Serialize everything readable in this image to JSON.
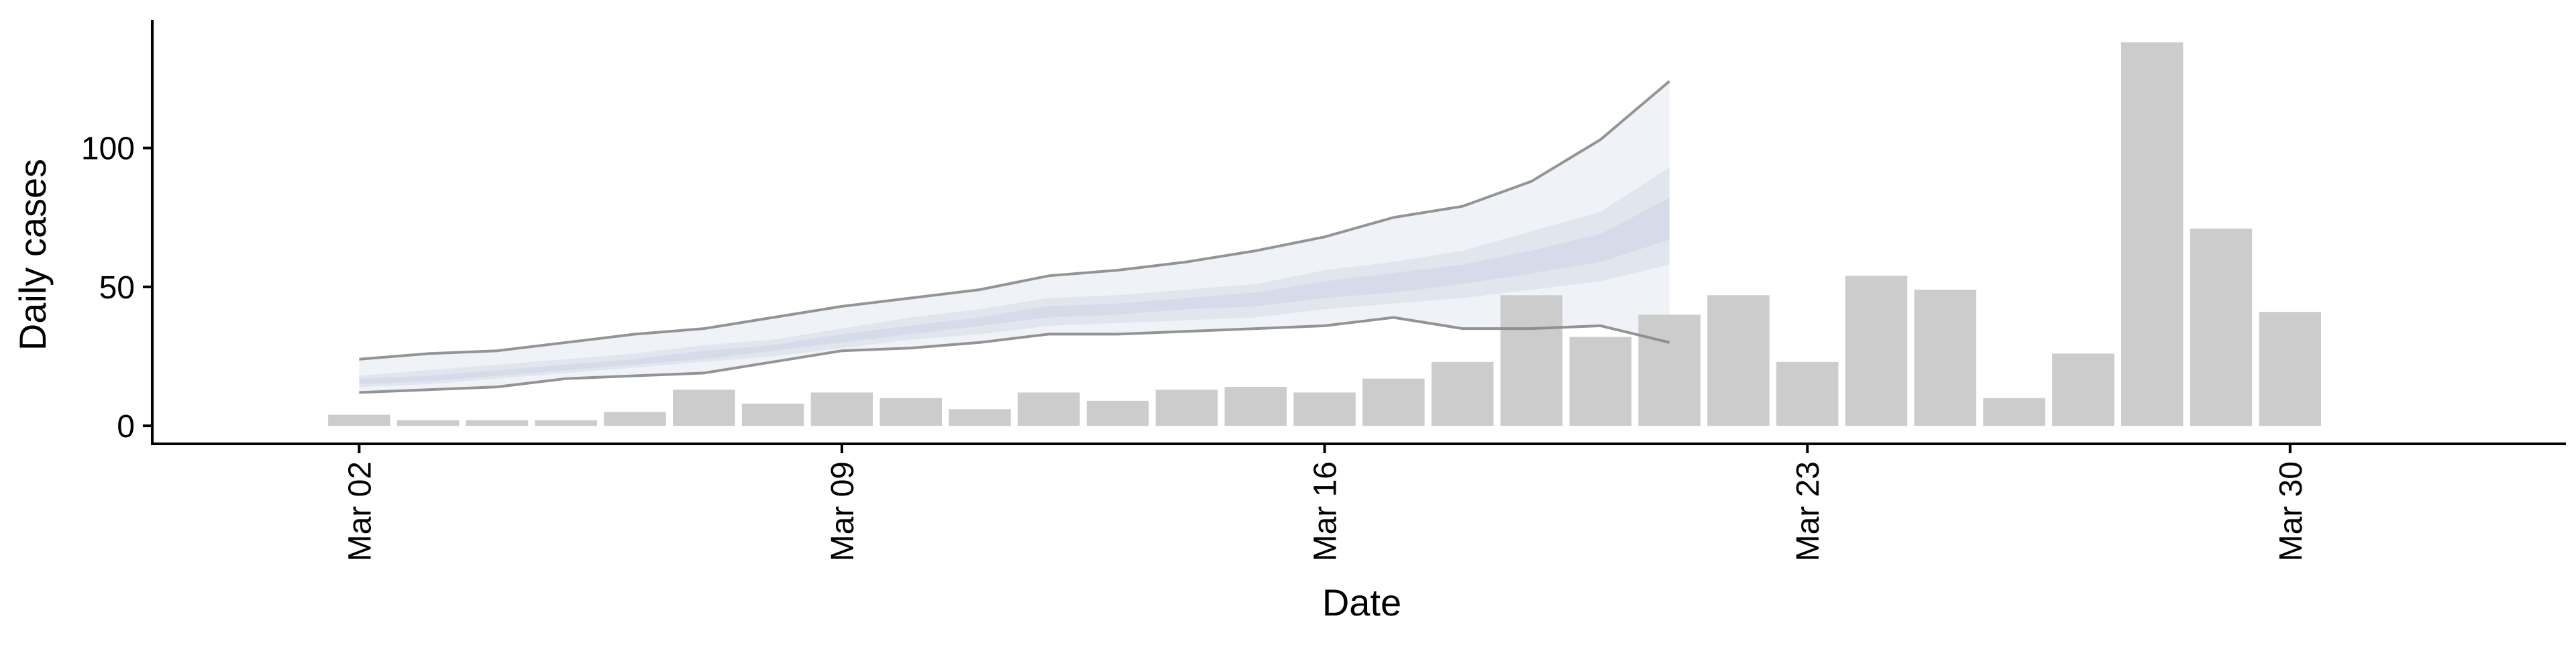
{
  "chart_data": {
    "type": "bar",
    "xlabel": "Date",
    "ylabel": "Daily cases",
    "x_tick_labels": [
      "Mar 02",
      "Mar 09",
      "Mar 16",
      "Mar 23",
      "Mar 30"
    ],
    "y_tick_labels": [
      "0",
      "50",
      "100"
    ],
    "ylim": [
      -6,
      146
    ],
    "xlim": [
      "2020-02-28",
      "2020-04-03"
    ],
    "grid": false,
    "legend": "none",
    "bars": {
      "color": "#cccccc",
      "dates": [
        "Mar 02",
        "Mar 03",
        "Mar 04",
        "Mar 05",
        "Mar 06",
        "Mar 07",
        "Mar 08",
        "Mar 09",
        "Mar 10",
        "Mar 11",
        "Mar 12",
        "Mar 13",
        "Mar 14",
        "Mar 15",
        "Mar 16",
        "Mar 17",
        "Mar 18",
        "Mar 19",
        "Mar 20",
        "Mar 21",
        "Mar 22",
        "Mar 23",
        "Mar 24",
        "Mar 25",
        "Mar 26",
        "Mar 27",
        "Mar 28",
        "Mar 29",
        "Mar 30"
      ],
      "values": [
        4,
        2,
        2,
        2,
        5,
        13,
        8,
        12,
        10,
        6,
        12,
        9,
        13,
        14,
        12,
        17,
        23,
        47,
        32,
        40,
        47,
        23,
        54,
        49,
        10,
        26,
        138,
        71,
        41
      ]
    },
    "forecast": {
      "dates": [
        "Mar 02",
        "Mar 03",
        "Mar 04",
        "Mar 05",
        "Mar 06",
        "Mar 07",
        "Mar 08",
        "Mar 09",
        "Mar 10",
        "Mar 11",
        "Mar 12",
        "Mar 13",
        "Mar 14",
        "Mar 15",
        "Mar 16",
        "Mar 17",
        "Mar 18",
        "Mar 19",
        "Mar 20",
        "Mar 21"
      ],
      "outer_lower": [
        12,
        13,
        14,
        17,
        18,
        19,
        23,
        27,
        28,
        30,
        33,
        33,
        34,
        35,
        36,
        39,
        35,
        35,
        36,
        30
      ],
      "outer_upper": [
        24,
        26,
        27,
        30,
        33,
        35,
        39,
        43,
        46,
        49,
        54,
        56,
        59,
        63,
        68,
        75,
        79,
        88,
        103,
        124
      ],
      "inner_lower": [
        14,
        15,
        17,
        19,
        21,
        23,
        25,
        28,
        31,
        33,
        36,
        37,
        38,
        39,
        42,
        44,
        46,
        49,
        52,
        58
      ],
      "inner_upper": [
        18,
        20,
        22,
        24,
        26,
        29,
        31,
        35,
        39,
        42,
        46,
        47,
        49,
        51,
        56,
        59,
        63,
        70,
        77,
        93
      ],
      "core_lower": [
        15,
        16,
        18,
        20,
        22,
        24,
        27,
        30,
        33,
        36,
        39,
        40,
        42,
        43,
        46,
        48,
        51,
        55,
        59,
        67
      ],
      "core_upper": [
        17,
        18,
        20,
        22,
        24,
        27,
        29,
        33,
        36,
        39,
        43,
        44,
        46,
        48,
        52,
        55,
        58,
        63,
        69,
        82
      ],
      "line_color": "#888888",
      "band_color": "#c7cfe0"
    }
  }
}
